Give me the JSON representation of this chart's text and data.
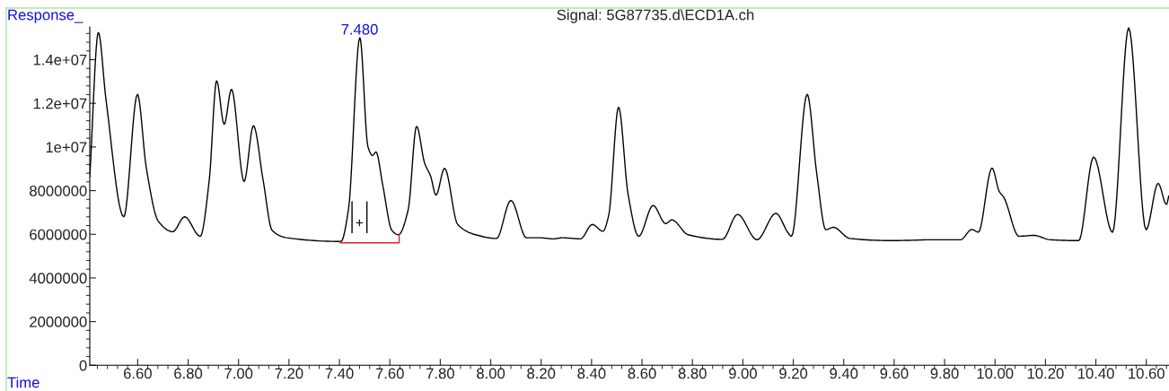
{
  "chart_data": {
    "type": "line",
    "title": "Signal: 5G87735.d\\ECD1A.ch",
    "xlabel": "Time",
    "ylabel": "Response_",
    "xlim": [
      6.41,
      10.69
    ],
    "ylim": [
      0,
      15500000
    ],
    "xticks": [
      {
        "value": 6.6,
        "label": "6.60"
      },
      {
        "value": 6.8,
        "label": "6.80"
      },
      {
        "value": 7.0,
        "label": "7.00"
      },
      {
        "value": 7.2,
        "label": "7.20"
      },
      {
        "value": 7.4,
        "label": "7.40"
      },
      {
        "value": 7.6,
        "label": "7.60"
      },
      {
        "value": 7.8,
        "label": "7.80"
      },
      {
        "value": 8.0,
        "label": "8.00"
      },
      {
        "value": 8.2,
        "label": "8.20"
      },
      {
        "value": 8.4,
        "label": "8.40"
      },
      {
        "value": 8.6,
        "label": "8.60"
      },
      {
        "value": 8.8,
        "label": "8.80"
      },
      {
        "value": 9.0,
        "label": "9.00"
      },
      {
        "value": 9.2,
        "label": "9.20"
      },
      {
        "value": 9.4,
        "label": "9.40"
      },
      {
        "value": 9.6,
        "label": "9.60"
      },
      {
        "value": 9.8,
        "label": "9.80"
      },
      {
        "value": 10.0,
        "label": "10.00"
      },
      {
        "value": 10.2,
        "label": "10.20"
      },
      {
        "value": 10.4,
        "label": "10.40"
      },
      {
        "value": 10.6,
        "label": "10.60"
      }
    ],
    "yticks": [
      0,
      2000000,
      4000000,
      6000000,
      8000000,
      {
        "value": 10000000,
        "label": "1e+07"
      },
      {
        "value": 12000000,
        "label": "1.2e+07"
      },
      {
        "value": 14000000,
        "label": "1.4e+07"
      }
    ],
    "grid": false,
    "legend": false,
    "marker": "none",
    "line_style": "solid",
    "annotations": [
      {
        "text": "7.480",
        "x": 7.48,
        "y": 15010000
      },
      "+"
    ],
    "series": [
      {
        "color": "#000000",
        "x": [
          6.41,
          6.444,
          6.474,
          6.545,
          6.599,
          6.634,
          6.682,
          6.739,
          6.786,
          6.848,
          6.884,
          6.913,
          6.943,
          6.972,
          7.022,
          7.059,
          7.097,
          7.133,
          7.192,
          7.406,
          7.436,
          7.481,
          7.513,
          7.531,
          7.545,
          7.572,
          7.608,
          7.634,
          7.673,
          7.706,
          7.738,
          7.762,
          7.783,
          7.817,
          7.869,
          7.94,
          8.023,
          8.08,
          8.142,
          8.195,
          8.249,
          8.284,
          8.356,
          8.403,
          8.445,
          8.468,
          8.507,
          8.545,
          8.587,
          8.644,
          8.694,
          8.718,
          8.783,
          8.919,
          8.979,
          9.056,
          9.131,
          9.181,
          9.193,
          9.255,
          9.293,
          9.329,
          9.359,
          9.424,
          9.59,
          9.756,
          9.863,
          9.908,
          9.934,
          9.988,
          10.017,
          10.035,
          10.095,
          10.154,
          10.219,
          10.332,
          10.391,
          10.466,
          10.53,
          10.599,
          10.647,
          10.68,
          10.689
        ],
        "values": [
          8650000,
          15240000,
          12200000,
          6800000,
          12410000,
          9060000,
          6590000,
          6120000,
          6800000,
          5910000,
          8510000,
          13030000,
          11040000,
          12640000,
          8420000,
          10970000,
          8510000,
          6180000,
          5840000,
          5670000,
          7140000,
          15010000,
          10020000,
          9610000,
          9770000,
          8240000,
          6180000,
          5980000,
          7140000,
          10940000,
          9260000,
          8650000,
          7800000,
          9020000,
          6450000,
          5980000,
          5810000,
          7550000,
          5840000,
          5840000,
          5790000,
          5840000,
          5790000,
          6450000,
          6140000,
          6870000,
          11820000,
          7820000,
          5910000,
          7320000,
          6490000,
          6660000,
          5980000,
          5770000,
          6910000,
          5750000,
          6960000,
          6040000,
          5910000,
          12410000,
          8780000,
          6210000,
          6320000,
          5810000,
          5710000,
          5750000,
          5750000,
          6220000,
          6100000,
          9030000,
          7960000,
          7690000,
          5910000,
          5950000,
          5750000,
          5710000,
          9540000,
          6090000,
          15460000,
          6210000,
          8330000,
          7370000,
          7750000
        ]
      },
      {
        "color": "#e02020",
        "x": [
          7.403,
          7.403,
          7.637,
          7.637
        ],
        "values": [
          5670000,
          5610000,
          5610000,
          5980000
        ]
      },
      {
        "color": "#000000",
        "x": [
          7.45,
          7.45
        ],
        "values": [
          6080000,
          7480000
        ]
      },
      {
        "color": "#000000",
        "x": [
          7.509,
          7.509
        ],
        "values": [
          6080000,
          7480000
        ]
      }
    ]
  }
}
